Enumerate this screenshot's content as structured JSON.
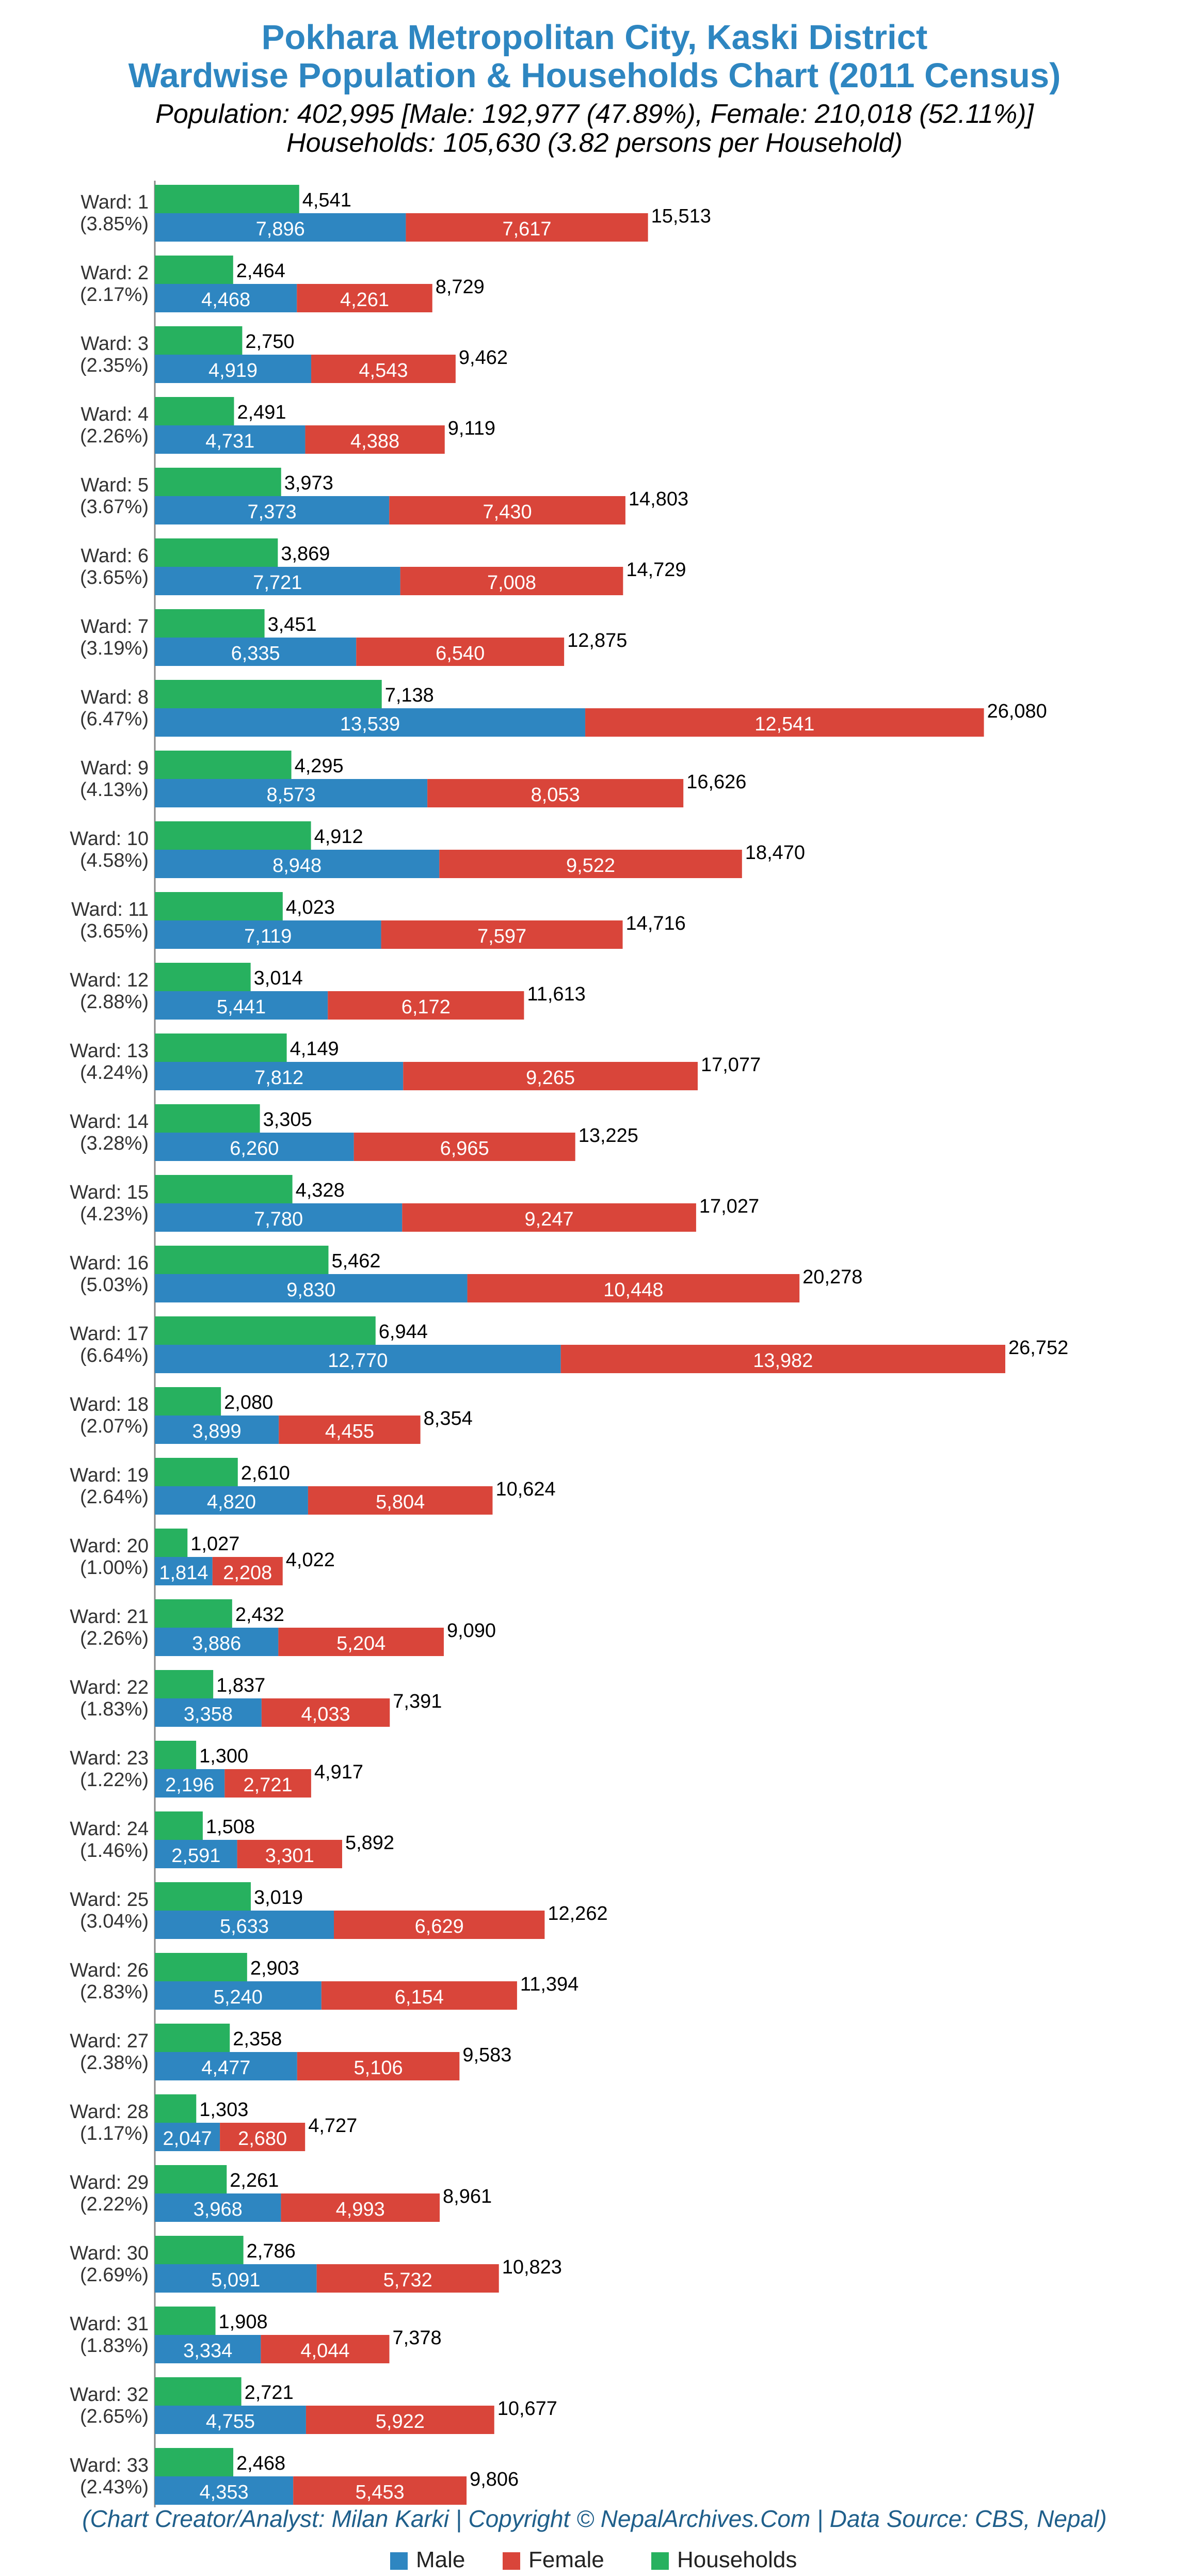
{
  "header": {
    "title_line1": "Pokhara Metropolitan City, Kaski District",
    "title_line2": "Wardwise Population & Households Chart (2011 Census)",
    "summary_population": "Population: 402,995 [Male: 192,977 (47.89%), Female: 210,018 (52.11%)]",
    "summary_households": "Households: 105,630 (3.82 persons per Household)"
  },
  "footer": {
    "credit": "(Chart Creator/Analyst: Milan Karki | Copyright © NepalArchives.Com | Data Source: CBS, Nepal)"
  },
  "legend": [
    {
      "label": "Male",
      "color": "#2e86c1"
    },
    {
      "label": "Female",
      "color": "#d9453a"
    },
    {
      "label": "Households",
      "color": "#27b15f"
    }
  ],
  "chart_data": {
    "type": "bar",
    "orientation": "horizontal",
    "stacked_series": [
      "Male",
      "Female"
    ],
    "colors": {
      "male": "#2e86c1",
      "female": "#d9453a",
      "households": "#27b15f"
    },
    "legend_position": "bottom",
    "grid": false,
    "xlim": [
      0,
      26752
    ],
    "wards": [
      {
        "label": "Ward: 1",
        "pct": "(3.85%)",
        "households": 4541,
        "male": 7896,
        "female": 7617,
        "total": 15513
      },
      {
        "label": "Ward: 2",
        "pct": "(2.17%)",
        "households": 2464,
        "male": 4468,
        "female": 4261,
        "total": 8729
      },
      {
        "label": "Ward: 3",
        "pct": "(2.35%)",
        "households": 2750,
        "male": 4919,
        "female": 4543,
        "total": 9462
      },
      {
        "label": "Ward: 4",
        "pct": "(2.26%)",
        "households": 2491,
        "male": 4731,
        "female": 4388,
        "total": 9119
      },
      {
        "label": "Ward: 5",
        "pct": "(3.67%)",
        "households": 3973,
        "male": 7373,
        "female": 7430,
        "total": 14803
      },
      {
        "label": "Ward: 6",
        "pct": "(3.65%)",
        "households": 3869,
        "male": 7721,
        "female": 7008,
        "total": 14729
      },
      {
        "label": "Ward: 7",
        "pct": "(3.19%)",
        "households": 3451,
        "male": 6335,
        "female": 6540,
        "total": 12875
      },
      {
        "label": "Ward: 8",
        "pct": "(6.47%)",
        "households": 7138,
        "male": 13539,
        "female": 12541,
        "total": 26080
      },
      {
        "label": "Ward: 9",
        "pct": "(4.13%)",
        "households": 4295,
        "male": 8573,
        "female": 8053,
        "total": 16626
      },
      {
        "label": "Ward: 10",
        "pct": "(4.58%)",
        "households": 4912,
        "male": 8948,
        "female": 9522,
        "total": 18470
      },
      {
        "label": "Ward: 11",
        "pct": "(3.65%)",
        "households": 4023,
        "male": 7119,
        "female": 7597,
        "total": 14716
      },
      {
        "label": "Ward: 12",
        "pct": "(2.88%)",
        "households": 3014,
        "male": 5441,
        "female": 6172,
        "total": 11613
      },
      {
        "label": "Ward: 13",
        "pct": "(4.24%)",
        "households": 4149,
        "male": 7812,
        "female": 9265,
        "total": 17077
      },
      {
        "label": "Ward: 14",
        "pct": "(3.28%)",
        "households": 3305,
        "male": 6260,
        "female": 6965,
        "total": 13225
      },
      {
        "label": "Ward: 15",
        "pct": "(4.23%)",
        "households": 4328,
        "male": 7780,
        "female": 9247,
        "total": 17027
      },
      {
        "label": "Ward: 16",
        "pct": "(5.03%)",
        "households": 5462,
        "male": 9830,
        "female": 10448,
        "total": 20278
      },
      {
        "label": "Ward: 17",
        "pct": "(6.64%)",
        "households": 6944,
        "male": 12770,
        "female": 13982,
        "total": 26752
      },
      {
        "label": "Ward: 18",
        "pct": "(2.07%)",
        "households": 2080,
        "male": 3899,
        "female": 4455,
        "total": 8354
      },
      {
        "label": "Ward: 19",
        "pct": "(2.64%)",
        "households": 2610,
        "male": 4820,
        "female": 5804,
        "total": 10624
      },
      {
        "label": "Ward: 20",
        "pct": "(1.00%)",
        "households": 1027,
        "male": 1814,
        "female": 2208,
        "total": 4022
      },
      {
        "label": "Ward: 21",
        "pct": "(2.26%)",
        "households": 2432,
        "male": 3886,
        "female": 5204,
        "total": 9090
      },
      {
        "label": "Ward: 22",
        "pct": "(1.83%)",
        "households": 1837,
        "male": 3358,
        "female": 4033,
        "total": 7391
      },
      {
        "label": "Ward: 23",
        "pct": "(1.22%)",
        "households": 1300,
        "male": 2196,
        "female": 2721,
        "total": 4917
      },
      {
        "label": "Ward: 24",
        "pct": "(1.46%)",
        "households": 1508,
        "male": 2591,
        "female": 3301,
        "total": 5892
      },
      {
        "label": "Ward: 25",
        "pct": "(3.04%)",
        "households": 3019,
        "male": 5633,
        "female": 6629,
        "total": 12262
      },
      {
        "label": "Ward: 26",
        "pct": "(2.83%)",
        "households": 2903,
        "male": 5240,
        "female": 6154,
        "total": 11394
      },
      {
        "label": "Ward: 27",
        "pct": "(2.38%)",
        "households": 2358,
        "male": 4477,
        "female": 5106,
        "total": 9583
      },
      {
        "label": "Ward: 28",
        "pct": "(1.17%)",
        "households": 1303,
        "male": 2047,
        "female": 2680,
        "total": 4727
      },
      {
        "label": "Ward: 29",
        "pct": "(2.22%)",
        "households": 2261,
        "male": 3968,
        "female": 4993,
        "total": 8961
      },
      {
        "label": "Ward: 30",
        "pct": "(2.69%)",
        "households": 2786,
        "male": 5091,
        "female": 5732,
        "total": 10823
      },
      {
        "label": "Ward: 31",
        "pct": "(1.83%)",
        "households": 1908,
        "male": 3334,
        "female": 4044,
        "total": 7378
      },
      {
        "label": "Ward: 32",
        "pct": "(2.65%)",
        "households": 2721,
        "male": 4755,
        "female": 5922,
        "total": 10677
      },
      {
        "label": "Ward: 33",
        "pct": "(2.43%)",
        "households": 2468,
        "male": 4353,
        "female": 5453,
        "total": 9806
      }
    ]
  }
}
